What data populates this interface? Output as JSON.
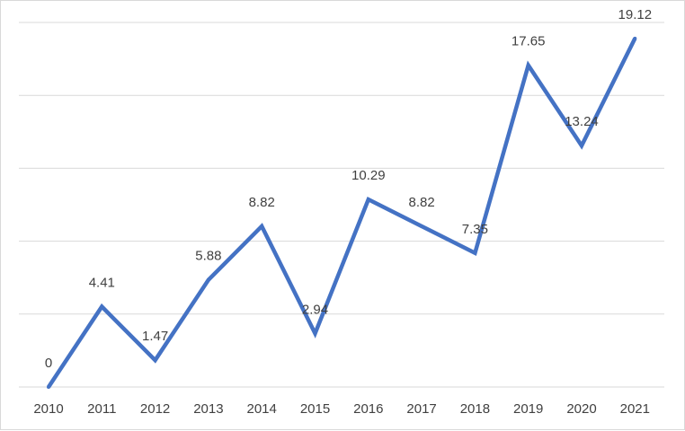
{
  "chart_data": {
    "type": "line",
    "title": "",
    "xlabel": "",
    "ylabel": "",
    "x": [
      "2010",
      "2011",
      "2012",
      "2013",
      "2014",
      "2015",
      "2016",
      "2017",
      "2018",
      "2019",
      "2020",
      "2021"
    ],
    "series": [
      {
        "values": [
          0,
          4.41,
          1.47,
          5.88,
          8.82,
          2.94,
          10.29,
          8.82,
          7.35,
          17.65,
          13.24,
          19.12
        ]
      }
    ],
    "data_labels": [
      "0",
      "4.41",
      "1.47",
      "5.88",
      "8.82",
      "2.94",
      "10.29",
      "8.82",
      "7.35",
      "17.65",
      "13.24",
      "19.12"
    ],
    "ylim": [
      0,
      20
    ],
    "grid": true,
    "legend": "none",
    "y_axis_labels_shown": false,
    "line_color": "#4472C4",
    "grid_color": "#D9D9D9",
    "text_color": "#404040"
  }
}
